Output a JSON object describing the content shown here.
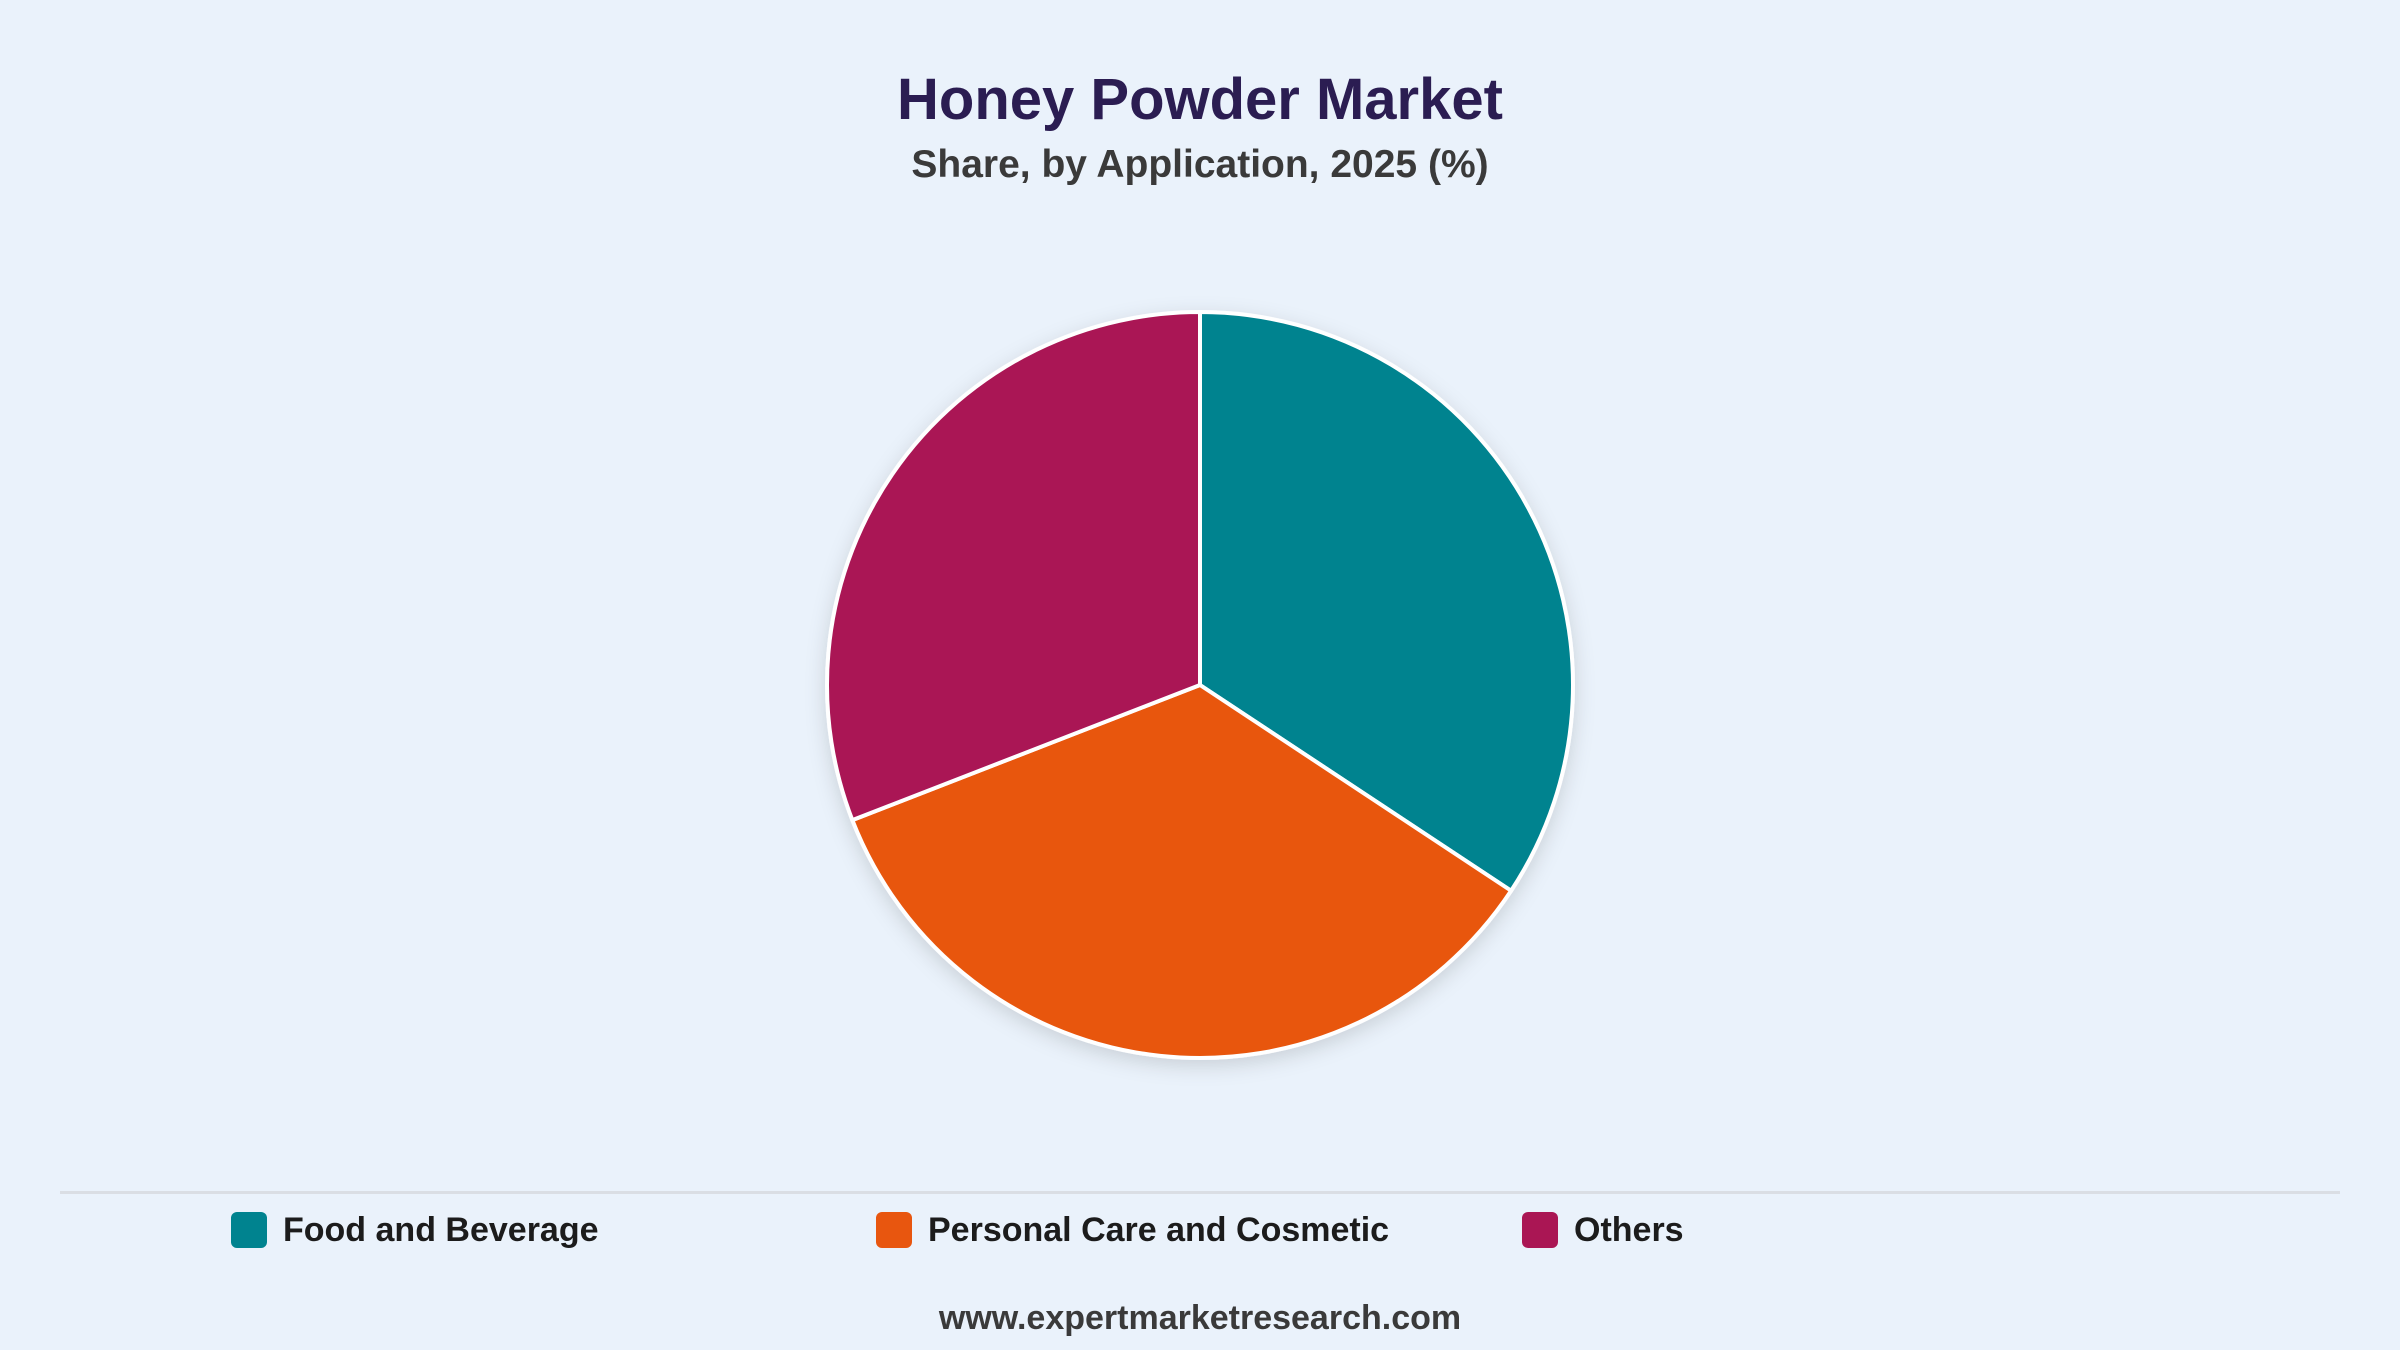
{
  "chart_data": {
    "type": "pie",
    "title": "Honey Powder Market",
    "subtitle": "Share, by Application, 2025 (%)",
    "categories": [
      "Food and Beverage",
      "Personal Care and Cosmetic",
      "Others"
    ],
    "values": [
      34.3,
      34.8,
      30.9
    ],
    "colors": [
      "#00838f",
      "#e8560f",
      "#aa1654"
    ],
    "start_angle_deg": 0,
    "direction": "clockwise",
    "legend_position": "bottom"
  },
  "source_text": "www.expertmarketresearch.com"
}
